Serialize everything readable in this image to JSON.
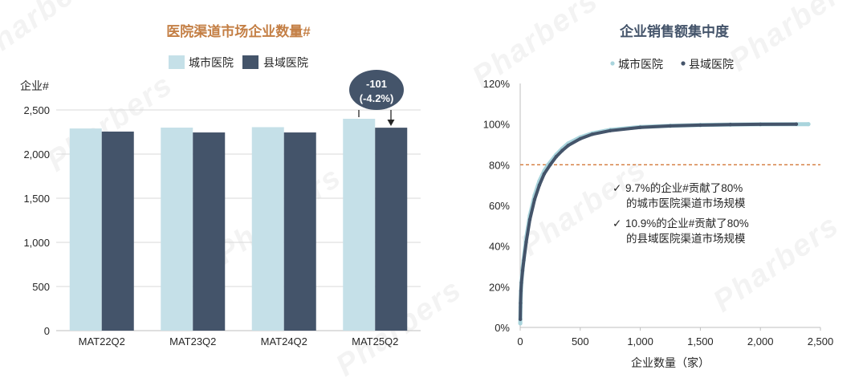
{
  "watermark": "Pharbers",
  "chart_data": [
    {
      "type": "bar",
      "title": "医院渠道市场企业数量#",
      "title_color": "#c47f45",
      "xlabel": "",
      "ylabel": "企业#",
      "categories": [
        "MAT22Q2",
        "MAT23Q2",
        "MAT24Q2",
        "MAT25Q2"
      ],
      "series": [
        {
          "name": "城市医院",
          "color": "#c5e0e8",
          "values": [
            2290,
            2300,
            2305,
            2400
          ]
        },
        {
          "name": "县域医院",
          "color": "#44546a",
          "values": [
            2255,
            2245,
            2245,
            2299
          ]
        }
      ],
      "ylim": [
        0,
        2500
      ],
      "yticks": [
        0,
        500,
        1000,
        1500,
        2000,
        2500
      ],
      "ytick_labels": [
        "0",
        "500",
        "1,000",
        "1,500",
        "2,000",
        "2,500"
      ],
      "grid": true,
      "legend": "top-center",
      "annotation": {
        "category": "MAT25Q2",
        "lines": [
          "-101",
          "(-4.2%)"
        ],
        "color": "#44546a"
      }
    },
    {
      "type": "scatter",
      "title": "企业销售额集中度",
      "title_color": "#44546a",
      "xlabel": "企业数量（家）",
      "ylabel": "",
      "xlim": [
        0,
        2500
      ],
      "ylim": [
        0,
        120
      ],
      "xticks": [
        0,
        500,
        1000,
        1500,
        2000,
        2500
      ],
      "xtick_labels": [
        "0",
        "500",
        "1,000",
        "1,500",
        "2,000",
        "2,500"
      ],
      "yticks": [
        0,
        20,
        40,
        60,
        80,
        100,
        120
      ],
      "ytick_labels": [
        "0%",
        "20%",
        "40%",
        "60%",
        "80%",
        "100%",
        "120%"
      ],
      "grid": false,
      "legend": "top-center",
      "series": [
        {
          "name": "城市医院",
          "color": "#a9d4dc",
          "points": [
            [
              1,
              2
            ],
            [
              3,
              10
            ],
            [
              6,
              17
            ],
            [
              10,
              22
            ],
            [
              20,
              29
            ],
            [
              30,
              34
            ],
            [
              50,
              44
            ],
            [
              80,
              55
            ],
            [
              120,
              65
            ],
            [
              160,
              72
            ],
            [
              200,
              77
            ],
            [
              233,
              80
            ],
            [
              300,
              85
            ],
            [
              350,
              88
            ],
            [
              400,
              90.5
            ],
            [
              500,
              93.5
            ],
            [
              600,
              95.5
            ],
            [
              750,
              97.2
            ],
            [
              1000,
              98.6
            ],
            [
              1250,
              99.2
            ],
            [
              1500,
              99.6
            ],
            [
              1750,
              99.8
            ],
            [
              2000,
              99.9
            ],
            [
              2400,
              100
            ]
          ]
        },
        {
          "name": "县域医院",
          "color": "#44546a",
          "points": [
            [
              1,
              4
            ],
            [
              3,
              12
            ],
            [
              6,
              18
            ],
            [
              10,
              22
            ],
            [
              20,
              28
            ],
            [
              30,
              33
            ],
            [
              50,
              42
            ],
            [
              80,
              53
            ],
            [
              120,
              63
            ],
            [
              160,
              70
            ],
            [
              200,
              75.5
            ],
            [
              250,
              80
            ],
            [
              300,
              84
            ],
            [
              350,
              87
            ],
            [
              400,
              89.5
            ],
            [
              500,
              92.8
            ],
            [
              600,
              95
            ],
            [
              750,
              96.8
            ],
            [
              1000,
              98.4
            ],
            [
              1250,
              99.1
            ],
            [
              1500,
              99.5
            ],
            [
              1750,
              99.8
            ],
            [
              2000,
              99.9
            ],
            [
              2299,
              100
            ]
          ]
        }
      ],
      "reference_line": {
        "y": 80,
        "style": "dashed",
        "color": "#d4793a"
      },
      "check_symbol": "✓",
      "annotations": [
        {
          "line1": "9.7%的企业#贡献了80%",
          "line2": "的城市医院渠道市场规模"
        },
        {
          "line1": "10.9%的企业#贡献了80%",
          "line2": "的县域医院渠道市场规模"
        }
      ]
    }
  ]
}
